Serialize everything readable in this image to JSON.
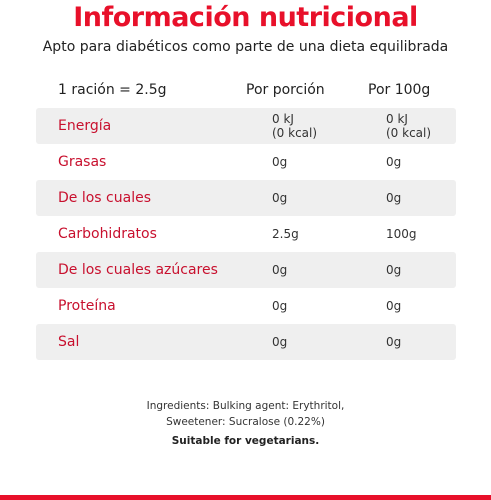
{
  "title": "Información nutricional",
  "subtitle": "Apto para diabéticos como parte de una dieta equilibrada",
  "table": {
    "header": {
      "serving": "1 ración = 2.5g",
      "per_portion": "Por porción",
      "per_100g": "Por 100g"
    },
    "rows": [
      {
        "name": "Energía",
        "per_portion": [
          "0 kJ",
          "(0 kcal)"
        ],
        "per_100g": [
          "0 kJ",
          "(0 kcal)"
        ],
        "shaded": true
      },
      {
        "name": "Grasas",
        "per_portion": [
          "0g"
        ],
        "per_100g": [
          "0g"
        ],
        "shaded": false
      },
      {
        "name": "De los cuales",
        "per_portion": [
          "0g"
        ],
        "per_100g": [
          "0g"
        ],
        "shaded": true
      },
      {
        "name": "Carbohidratos",
        "per_portion": [
          "2.5g"
        ],
        "per_100g": [
          "100g"
        ],
        "shaded": false
      },
      {
        "name": "De los cuales azúcares",
        "per_portion": [
          "0g"
        ],
        "per_100g": [
          "0g"
        ],
        "shaded": true
      },
      {
        "name": "Proteína",
        "per_portion": [
          "0g"
        ],
        "per_100g": [
          "0g"
        ],
        "shaded": false
      },
      {
        "name": "Sal",
        "per_portion": [
          "0g"
        ],
        "per_100g": [
          "0g"
        ],
        "shaded": true
      }
    ]
  },
  "footer": {
    "line1": "Ingredients: Bulking agent: Erythritol,",
    "line2": "Sweetener: Sucralose (0.22%)",
    "line3": "Suitable for vegetarians."
  },
  "colors": {
    "accent": "#e8102a",
    "row_label": "#c8102e",
    "row_shade": "#efefef"
  }
}
